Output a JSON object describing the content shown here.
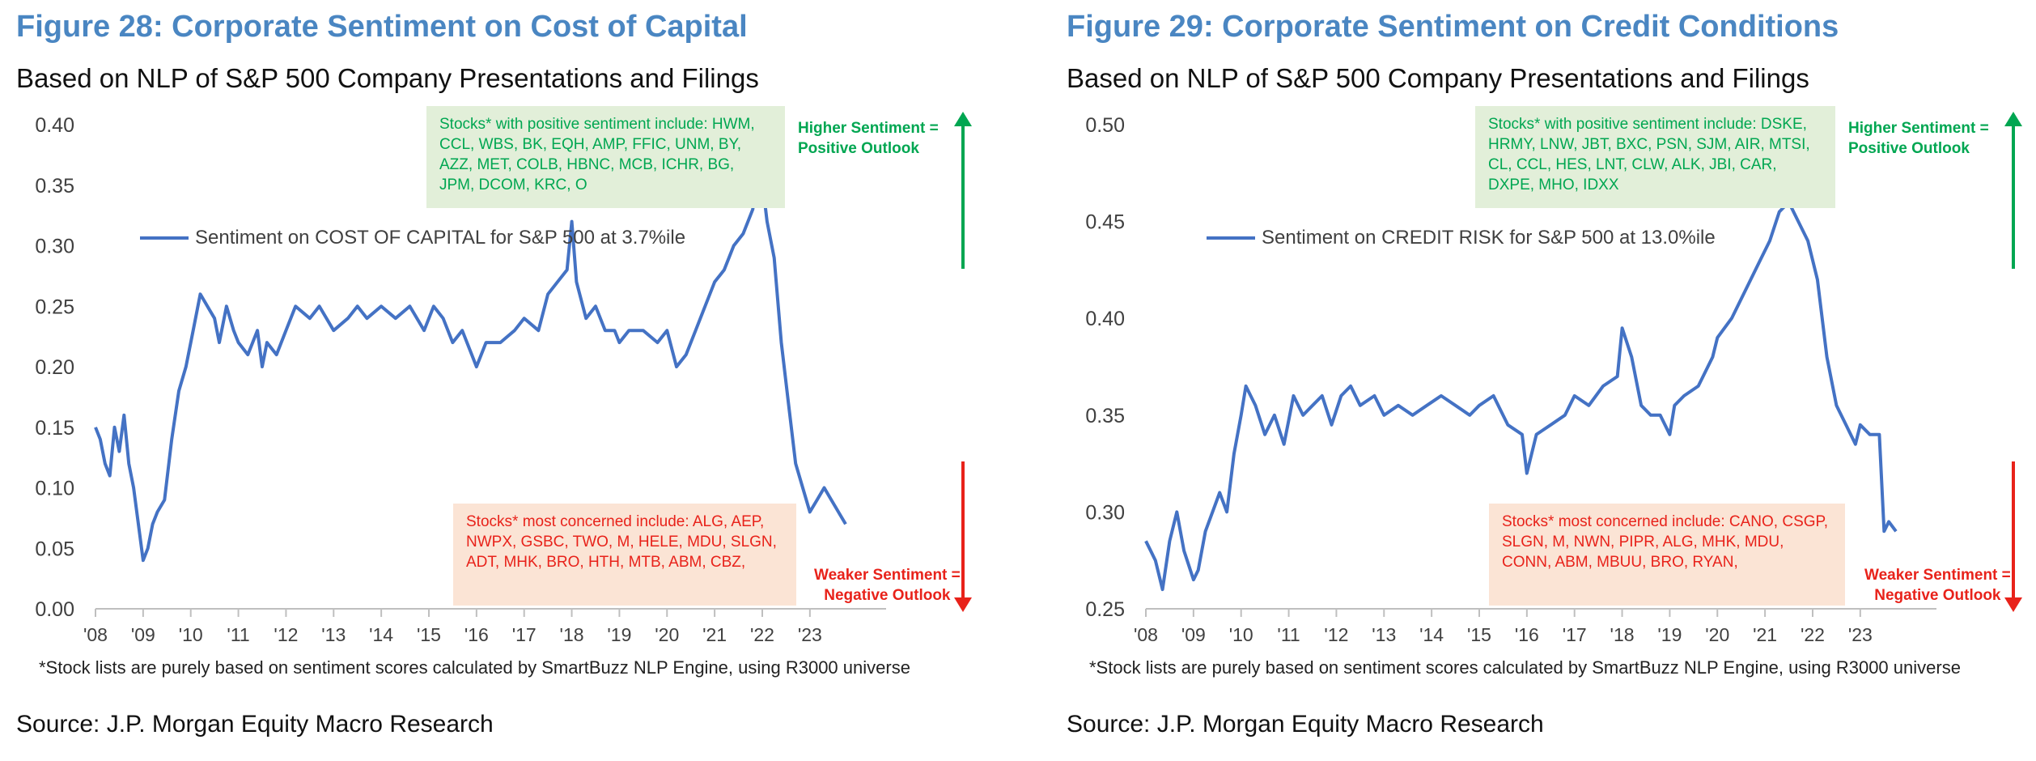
{
  "charts": [
    {
      "title": "Figure 28: Corporate Sentiment on Cost of Capital",
      "subtitle": "Based on NLP of S&P 500 Company Presentations and Filings",
      "positive_box": "Stocks* with positive sentiment include: HWM, CCL, WBS, BK, EQH, AMP, FFIC, UNM, BY, AZZ, MET, COLB, HBNC, MCB, ICHR, BG, JPM, DCOM, KRC, O",
      "negative_box": "Stocks* most concerned include: ALG, AEP, NWPX, GSBC, TWO, M, HELE, MDU, SLGN, ADT, MHK, BRO, HTH, MTB, ABM, CBZ,",
      "higher_label_1": "Higher Sentiment =",
      "higher_label_2": "Positive Outlook",
      "weaker_label_1": "Weaker Sentiment =",
      "weaker_label_2": "Negative Outlook",
      "footnote": "*Stock lists are purely based on sentiment scores calculated by SmartBuzz NLP Engine, using R3000 universe",
      "source": "Source: J.P. Morgan Equity Macro Research"
    },
    {
      "title": "Figure 29: Corporate Sentiment on Credit Conditions",
      "subtitle": "Based on NLP of S&P 500 Company Presentations and Filings",
      "positive_box": "Stocks* with positive sentiment include: DSKE, HRMY, LNW, JBT, BXC, PSN, SJM, AIR, MTSI, CL, CCL, HES, LNT, CLW, ALK, JBI, CAR, DXPE, MHO, IDXX",
      "negative_box": "Stocks* most concerned include: CANO, CSGP, SLGN, M, NWN, PIPR, ALG, MHK, MDU, CONN, ABM, MBUU, BRO, RYAN,",
      "higher_label_1": "Higher Sentiment =",
      "higher_label_2": "Positive Outlook",
      "weaker_label_1": "Weaker Sentiment =",
      "weaker_label_2": "Negative Outlook",
      "footnote": "*Stock lists are purely based on sentiment scores calculated by SmartBuzz NLP Engine, using R3000 universe",
      "source": "Source: J.P. Morgan Equity Macro Research"
    }
  ],
  "chart_data": [
    {
      "type": "line",
      "title": "Figure 28: Corporate Sentiment on Cost of Capital",
      "xlabel": "",
      "ylabel": "",
      "xlim": [
        2008,
        2024.6
      ],
      "ylim": [
        0,
        0.4
      ],
      "yticks": [
        0.0,
        0.05,
        0.1,
        0.15,
        0.2,
        0.25,
        0.3,
        0.35,
        0.4
      ],
      "ytick_labels": [
        "0.00",
        "0.05",
        "0.10",
        "0.15",
        "0.20",
        "0.25",
        "0.30",
        "0.35",
        "0.40"
      ],
      "xticks": [
        2008,
        2009,
        2010,
        2011,
        2012,
        2013,
        2014,
        2015,
        2016,
        2017,
        2018,
        2019,
        2020,
        2021,
        2022,
        2023
      ],
      "xtick_labels": [
        "'08",
        "'09",
        "'10",
        "'11",
        "'12",
        "'13",
        "'14",
        "'15",
        "'16",
        "'17",
        "'18",
        "'19",
        "'20",
        "'21",
        "'22",
        "'23"
      ],
      "legend_position": "upper-left",
      "grid": false,
      "color": "#4472c4",
      "series": [
        {
          "name": "Sentiment on COST OF CAPITAL for S&P 500 at 3.7%ile",
          "x": [
            2008.0,
            2008.1,
            2008.2,
            2008.3,
            2008.4,
            2008.5,
            2008.6,
            2008.7,
            2008.8,
            2008.9,
            2009.0,
            2009.1,
            2009.2,
            2009.3,
            2009.45,
            2009.6,
            2009.75,
            2009.9,
            2010.05,
            2010.2,
            2010.35,
            2010.5,
            2010.6,
            2010.75,
            2010.9,
            2011.0,
            2011.2,
            2011.4,
            2011.5,
            2011.6,
            2011.8,
            2012.0,
            2012.2,
            2012.5,
            2012.7,
            2013.0,
            2013.3,
            2013.5,
            2013.7,
            2014.0,
            2014.3,
            2014.6,
            2014.9,
            2015.1,
            2015.3,
            2015.5,
            2015.7,
            2015.9,
            2016.0,
            2016.2,
            2016.5,
            2016.8,
            2017.0,
            2017.3,
            2017.5,
            2017.7,
            2017.9,
            2018.0,
            2018.1,
            2018.3,
            2018.5,
            2018.7,
            2018.9,
            2019.0,
            2019.2,
            2019.5,
            2019.8,
            2020.0,
            2020.2,
            2020.4,
            2020.6,
            2020.8,
            2021.0,
            2021.2,
            2021.4,
            2021.6,
            2021.8,
            2021.95,
            2022.1,
            2022.25,
            2022.4,
            2022.55,
            2022.7,
            2022.85,
            2023.0,
            2023.15,
            2023.3,
            2023.45,
            2023.6,
            2023.75
          ],
          "y": [
            0.15,
            0.14,
            0.12,
            0.11,
            0.15,
            0.13,
            0.16,
            0.12,
            0.1,
            0.07,
            0.04,
            0.05,
            0.07,
            0.08,
            0.09,
            0.14,
            0.18,
            0.2,
            0.23,
            0.26,
            0.25,
            0.24,
            0.22,
            0.25,
            0.23,
            0.22,
            0.21,
            0.23,
            0.2,
            0.22,
            0.21,
            0.23,
            0.25,
            0.24,
            0.25,
            0.23,
            0.24,
            0.25,
            0.24,
            0.25,
            0.24,
            0.25,
            0.23,
            0.25,
            0.24,
            0.22,
            0.23,
            0.21,
            0.2,
            0.22,
            0.22,
            0.23,
            0.24,
            0.23,
            0.26,
            0.27,
            0.28,
            0.32,
            0.27,
            0.24,
            0.25,
            0.23,
            0.23,
            0.22,
            0.23,
            0.23,
            0.22,
            0.23,
            0.2,
            0.21,
            0.23,
            0.25,
            0.27,
            0.28,
            0.3,
            0.31,
            0.33,
            0.37,
            0.32,
            0.29,
            0.22,
            0.17,
            0.12,
            0.1,
            0.08,
            0.09,
            0.1,
            0.09,
            0.08,
            0.07
          ]
        }
      ]
    },
    {
      "type": "line",
      "title": "Figure 29: Corporate Sentiment on Credit Conditions",
      "xlabel": "",
      "ylabel": "",
      "xlim": [
        2008,
        2024.6
      ],
      "ylim": [
        0.25,
        0.5
      ],
      "yticks": [
        0.25,
        0.3,
        0.35,
        0.4,
        0.45,
        0.5
      ],
      "ytick_labels": [
        "0.25",
        "0.30",
        "0.35",
        "0.40",
        "0.45",
        "0.50"
      ],
      "xticks": [
        2008,
        2009,
        2010,
        2011,
        2012,
        2013,
        2014,
        2015,
        2016,
        2017,
        2018,
        2019,
        2020,
        2021,
        2022,
        2023
      ],
      "xtick_labels": [
        "'08",
        "'09",
        "'10",
        "'11",
        "'12",
        "'13",
        "'14",
        "'15",
        "'16",
        "'17",
        "'18",
        "'19",
        "'20",
        "'21",
        "'22",
        "'23"
      ],
      "legend_position": "upper-left",
      "grid": false,
      "color": "#4472c4",
      "series": [
        {
          "name": "Sentiment on CREDIT RISK for S&P 500 at 13.0%ile",
          "x": [
            2008.0,
            2008.1,
            2008.2,
            2008.35,
            2008.5,
            2008.65,
            2008.8,
            2009.0,
            2009.1,
            2009.25,
            2009.4,
            2009.55,
            2009.7,
            2009.85,
            2010.0,
            2010.1,
            2010.3,
            2010.5,
            2010.7,
            2010.9,
            2011.1,
            2011.3,
            2011.5,
            2011.7,
            2011.9,
            2012.1,
            2012.3,
            2012.5,
            2012.8,
            2013.0,
            2013.3,
            2013.6,
            2013.9,
            2014.2,
            2014.5,
            2014.8,
            2015.0,
            2015.3,
            2015.6,
            2015.9,
            2016.0,
            2016.2,
            2016.5,
            2016.8,
            2017.0,
            2017.3,
            2017.6,
            2017.9,
            2018.0,
            2018.2,
            2018.4,
            2018.6,
            2018.8,
            2019.0,
            2019.1,
            2019.3,
            2019.6,
            2019.9,
            2020.0,
            2020.3,
            2020.6,
            2020.9,
            2021.1,
            2021.3,
            2021.5,
            2021.7,
            2021.9,
            2022.1,
            2022.3,
            2022.5,
            2022.7,
            2022.9,
            2023.0,
            2023.2,
            2023.4,
            2023.5,
            2023.6,
            2023.75
          ],
          "y": [
            0.285,
            0.28,
            0.275,
            0.26,
            0.285,
            0.3,
            0.28,
            0.265,
            0.27,
            0.29,
            0.3,
            0.31,
            0.3,
            0.33,
            0.35,
            0.365,
            0.355,
            0.34,
            0.35,
            0.335,
            0.36,
            0.35,
            0.355,
            0.36,
            0.345,
            0.36,
            0.365,
            0.355,
            0.36,
            0.35,
            0.355,
            0.35,
            0.355,
            0.36,
            0.355,
            0.35,
            0.355,
            0.36,
            0.345,
            0.34,
            0.32,
            0.34,
            0.345,
            0.35,
            0.36,
            0.355,
            0.365,
            0.37,
            0.395,
            0.38,
            0.355,
            0.35,
            0.35,
            0.34,
            0.355,
            0.36,
            0.365,
            0.38,
            0.39,
            0.4,
            0.415,
            0.43,
            0.44,
            0.455,
            0.46,
            0.45,
            0.44,
            0.42,
            0.38,
            0.355,
            0.345,
            0.335,
            0.345,
            0.34,
            0.34,
            0.29,
            0.295,
            0.29
          ]
        }
      ]
    }
  ]
}
